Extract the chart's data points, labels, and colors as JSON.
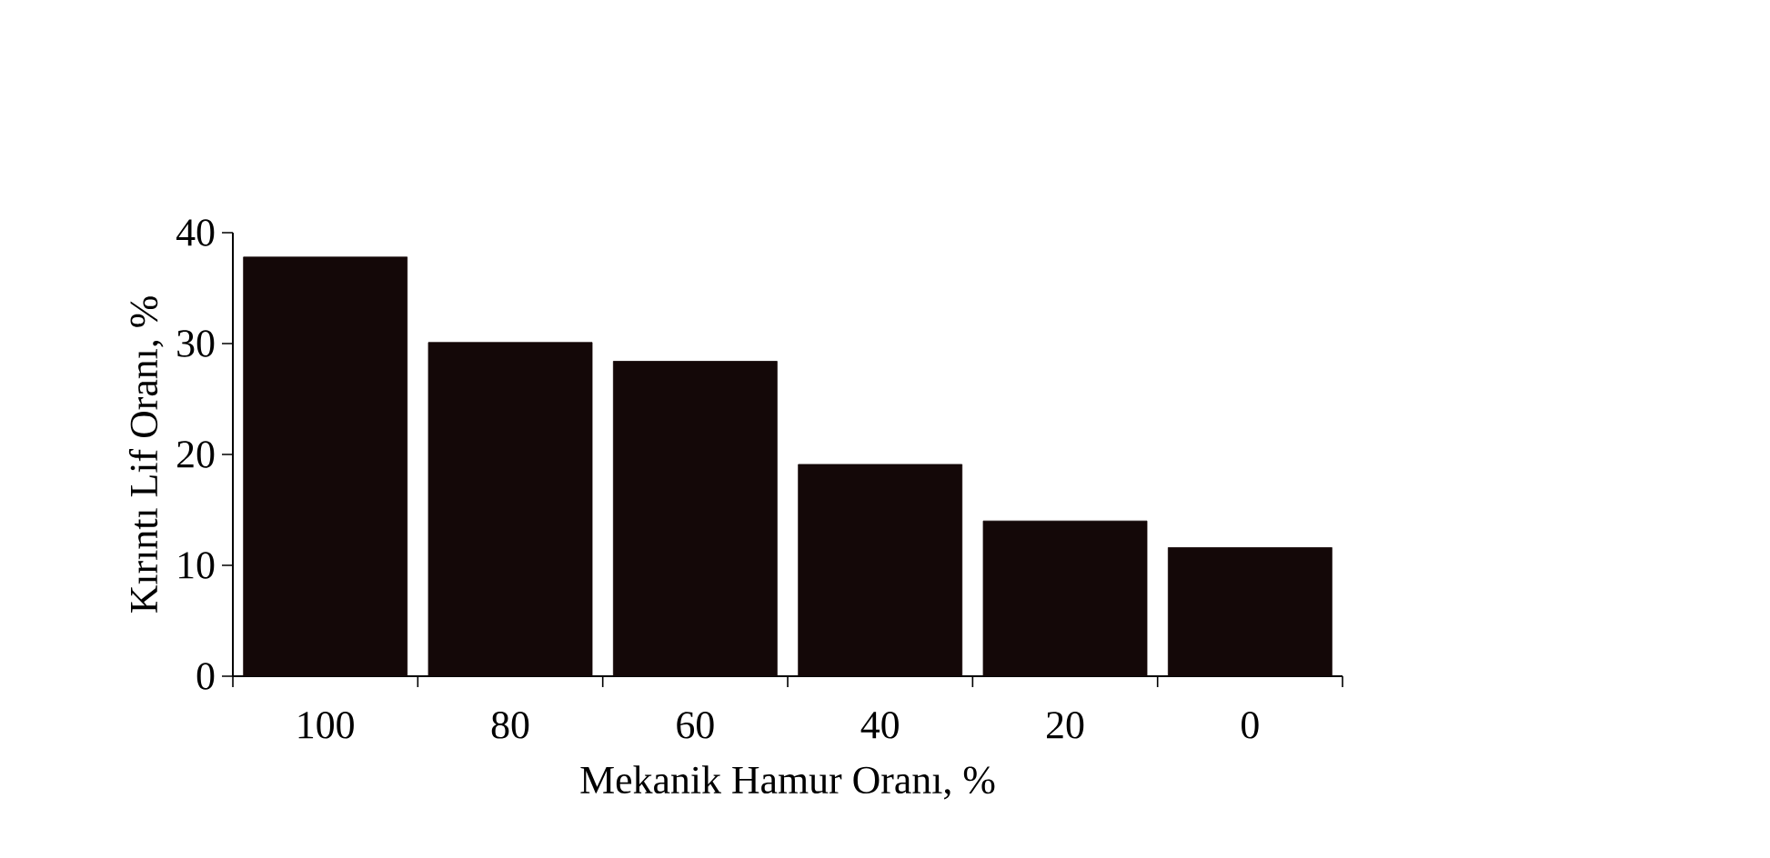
{
  "chart_data": {
    "type": "bar",
    "xlabel": "Mekanik Hamur Oranı, %",
    "ylabel": "Kırıntı Lif Oranı, %",
    "categories": [
      "100",
      "80",
      "60",
      "40",
      "20",
      "0"
    ],
    "values": [
      37.8,
      30.1,
      28.4,
      19.1,
      14.0,
      11.6
    ],
    "color": "#140808",
    "ylim": [
      0,
      40
    ],
    "yticks": [
      0,
      10,
      20,
      30,
      40
    ],
    "grid": false
  }
}
